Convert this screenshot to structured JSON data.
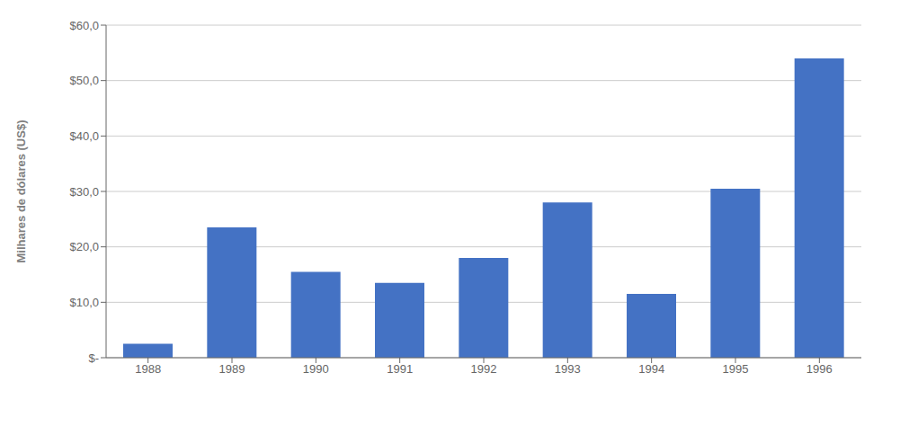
{
  "chart_data": {
    "type": "bar",
    "categories": [
      "1988",
      "1989",
      "1990",
      "1991",
      "1992",
      "1993",
      "1994",
      "1995",
      "1996"
    ],
    "values": [
      2.5,
      23.5,
      15.5,
      13.5,
      18.0,
      28.0,
      11.5,
      30.5,
      54.0
    ],
    "color": "#4472C4",
    "ylabel": "Milhares de dólares (US$)",
    "ylim": [
      0,
      60
    ],
    "yticks": [
      {
        "value": 0,
        "label": "$-"
      },
      {
        "value": 10,
        "label": "$10,0"
      },
      {
        "value": 20,
        "label": "$20,0"
      },
      {
        "value": 30,
        "label": "$30,0"
      },
      {
        "value": 40,
        "label": "$40,0"
      },
      {
        "value": 50,
        "label": "$50,0"
      },
      {
        "value": 60,
        "label": "$60,0"
      }
    ],
    "grid": true
  }
}
